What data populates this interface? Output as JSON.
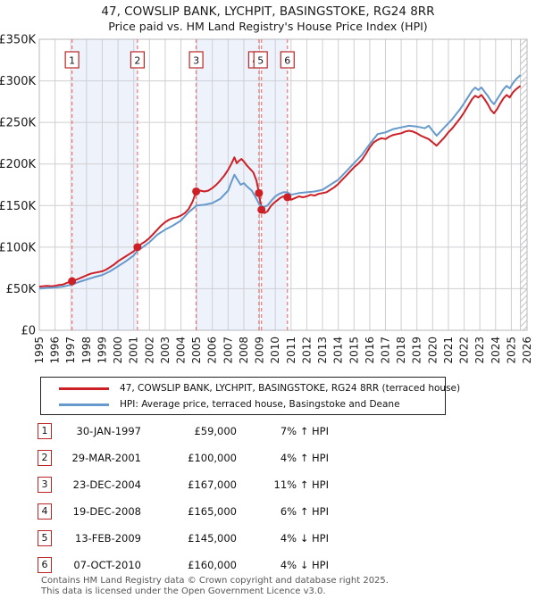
{
  "title": {
    "line1": "47, COWSLIP BANK, LYCHPIT, BASINGSTOKE, RG24 8RR",
    "line2": "Price paid vs. HM Land Registry's House Price Index (HPI)"
  },
  "legend": {
    "items": [
      {
        "label": "47, COWSLIP BANK, LYCHPIT, BASINGSTOKE, RG24 8RR (terraced house)",
        "color": "#cc2026"
      },
      {
        "label": "HPI: Average price, terraced house, Basingstoke and Deane",
        "color": "#6699cc"
      }
    ]
  },
  "chart_data": {
    "type": "line",
    "title": "Price paid vs. HM Land Registry's House Price Index (HPI)",
    "x_range": [
      1995,
      2026
    ],
    "y_range_k": [
      0,
      350
    ],
    "grid": true,
    "legend_position": "below",
    "x_tick_labels": [
      "1995",
      "1996",
      "1997",
      "1998",
      "1999",
      "2000",
      "2001",
      "2002",
      "2003",
      "2004",
      "2005",
      "2006",
      "2007",
      "2008",
      "2009",
      "2010",
      "2011",
      "2012",
      "2013",
      "2014",
      "2015",
      "2016",
      "2017",
      "2018",
      "2019",
      "2020",
      "2021",
      "2022",
      "2023",
      "2024",
      "2025",
      "2026"
    ],
    "y_ticks": [
      {
        "v": 0,
        "label": "£0"
      },
      {
        "v": 50,
        "label": "£50K"
      },
      {
        "v": 100,
        "label": "£100K"
      },
      {
        "v": 150,
        "label": "£150K"
      },
      {
        "v": 200,
        "label": "£200K"
      },
      {
        "v": 250,
        "label": "£250K"
      },
      {
        "v": 300,
        "label": "£300K"
      },
      {
        "v": 350,
        "label": "£350K"
      }
    ],
    "band_color": "#eef2fb",
    "dashed_line_color": "#f07575",
    "grid_color": "#cfcfd4",
    "border_color": "#b8b8bc",
    "hatch_color": "#c4c4c8",
    "hatch_start_year": 2025.58,
    "ownership_bands": [
      [
        1997.08,
        2001.24
      ],
      [
        2004.97,
        2008.96
      ],
      [
        2009.12,
        2010.77
      ]
    ],
    "sale_markers": [
      {
        "n": "1",
        "year": 1997.08,
        "price_k": 59,
        "box_dx": 0
      },
      {
        "n": "2",
        "year": 2001.24,
        "price_k": 100,
        "box_dx": 0
      },
      {
        "n": "3",
        "year": 2004.97,
        "price_k": 167,
        "box_dx": 0
      },
      {
        "n": "4",
        "year": 2008.96,
        "price_k": 165,
        "box_dx": -4
      },
      {
        "n": "5",
        "year": 2009.12,
        "price_k": 145,
        "box_dx": -1
      },
      {
        "n": "6",
        "year": 2010.77,
        "price_k": 160,
        "box_dx": 0
      }
    ],
    "series": [
      {
        "name": "47, COWSLIP BANK, LYCHPIT, BASINGSTOKE, RG24 8RR (terraced house)",
        "color": "#cc2026",
        "points": [
          [
            1995.0,
            52.5
          ],
          [
            1995.25,
            53
          ],
          [
            1995.5,
            53.5
          ],
          [
            1995.75,
            53
          ],
          [
            1996,
            53.5
          ],
          [
            1996.25,
            54.5
          ],
          [
            1996.5,
            55
          ],
          [
            1996.75,
            57
          ],
          [
            1997.08,
            59
          ],
          [
            1997.3,
            60.5
          ],
          [
            1997.5,
            62
          ],
          [
            1997.75,
            64
          ],
          [
            1998,
            66
          ],
          [
            1998.25,
            68
          ],
          [
            1998.5,
            69
          ],
          [
            1998.75,
            70
          ],
          [
            1999,
            71
          ],
          [
            1999.25,
            73
          ],
          [
            1999.5,
            76
          ],
          [
            1999.75,
            79
          ],
          [
            2000,
            83
          ],
          [
            2000.25,
            86
          ],
          [
            2000.5,
            89
          ],
          [
            2000.75,
            92
          ],
          [
            2001,
            95
          ],
          [
            2001.24,
            100
          ],
          [
            2001.5,
            104
          ],
          [
            2001.75,
            107
          ],
          [
            2002,
            111
          ],
          [
            2002.25,
            116
          ],
          [
            2002.5,
            121
          ],
          [
            2002.75,
            126
          ],
          [
            2003,
            130
          ],
          [
            2003.25,
            133
          ],
          [
            2003.5,
            135
          ],
          [
            2003.75,
            136
          ],
          [
            2004,
            138
          ],
          [
            2004.25,
            141
          ],
          [
            2004.5,
            146
          ],
          [
            2004.75,
            155
          ],
          [
            2004.97,
            167
          ],
          [
            2005.2,
            168
          ],
          [
            2005.5,
            167
          ],
          [
            2005.75,
            168
          ],
          [
            2006,
            171
          ],
          [
            2006.25,
            175
          ],
          [
            2006.5,
            180
          ],
          [
            2006.75,
            186
          ],
          [
            2007,
            193
          ],
          [
            2007.2,
            200
          ],
          [
            2007.4,
            208
          ],
          [
            2007.55,
            201
          ],
          [
            2007.7,
            204
          ],
          [
            2007.85,
            206
          ],
          [
            2008,
            203
          ],
          [
            2008.2,
            198
          ],
          [
            2008.4,
            194
          ],
          [
            2008.6,
            190
          ],
          [
            2008.8,
            180
          ],
          [
            2008.96,
            165
          ],
          [
            2009.12,
            145
          ],
          [
            2009.3,
            141
          ],
          [
            2009.5,
            143
          ],
          [
            2009.7,
            149
          ],
          [
            2009.9,
            153
          ],
          [
            2010.1,
            156
          ],
          [
            2010.3,
            159
          ],
          [
            2010.5,
            161
          ],
          [
            2010.77,
            160
          ],
          [
            2011,
            157
          ],
          [
            2011.25,
            159
          ],
          [
            2011.5,
            161
          ],
          [
            2011.75,
            160
          ],
          [
            2012,
            161
          ],
          [
            2012.25,
            163
          ],
          [
            2012.5,
            162
          ],
          [
            2012.75,
            164
          ],
          [
            2013,
            165
          ],
          [
            2013.25,
            166
          ],
          [
            2013.5,
            169
          ],
          [
            2013.75,
            172
          ],
          [
            2014,
            176
          ],
          [
            2014.25,
            181
          ],
          [
            2014.5,
            186
          ],
          [
            2014.75,
            191
          ],
          [
            2015,
            196
          ],
          [
            2015.25,
            200
          ],
          [
            2015.5,
            205
          ],
          [
            2015.75,
            212
          ],
          [
            2016,
            220
          ],
          [
            2016.25,
            226
          ],
          [
            2016.5,
            229
          ],
          [
            2016.75,
            231
          ],
          [
            2017,
            230
          ],
          [
            2017.25,
            233
          ],
          [
            2017.5,
            235
          ],
          [
            2017.75,
            236
          ],
          [
            2018,
            237
          ],
          [
            2018.25,
            239
          ],
          [
            2018.5,
            240
          ],
          [
            2018.75,
            239
          ],
          [
            2019,
            237
          ],
          [
            2019.25,
            234
          ],
          [
            2019.5,
            232
          ],
          [
            2019.75,
            230
          ],
          [
            2020,
            226
          ],
          [
            2020.25,
            222
          ],
          [
            2020.5,
            227
          ],
          [
            2020.75,
            232
          ],
          [
            2021,
            238
          ],
          [
            2021.25,
            243
          ],
          [
            2021.5,
            249
          ],
          [
            2021.75,
            255
          ],
          [
            2022,
            262
          ],
          [
            2022.25,
            270
          ],
          [
            2022.5,
            278
          ],
          [
            2022.7,
            282
          ],
          [
            2022.9,
            280
          ],
          [
            2023.1,
            283
          ],
          [
            2023.3,
            278
          ],
          [
            2023.5,
            272
          ],
          [
            2023.7,
            265
          ],
          [
            2023.9,
            261
          ],
          [
            2024.1,
            266
          ],
          [
            2024.3,
            273
          ],
          [
            2024.5,
            279
          ],
          [
            2024.7,
            283
          ],
          [
            2024.9,
            280
          ],
          [
            2025.1,
            286
          ],
          [
            2025.3,
            290
          ],
          [
            2025.58,
            294
          ]
        ]
      },
      {
        "name": "HPI: Average price, terraced house, Basingstoke and Deane",
        "color": "#6699cc",
        "points": [
          [
            1995,
            50
          ],
          [
            1995.5,
            51
          ],
          [
            1996,
            51.5
          ],
          [
            1996.5,
            52.5
          ],
          [
            1997.08,
            55
          ],
          [
            1997.5,
            58
          ],
          [
            1998,
            61
          ],
          [
            1998.5,
            64
          ],
          [
            1999,
            66.5
          ],
          [
            1999.5,
            71
          ],
          [
            2000,
            77
          ],
          [
            2000.5,
            83
          ],
          [
            2001,
            90
          ],
          [
            2001.24,
            96
          ],
          [
            2001.5,
            99
          ],
          [
            2002,
            106
          ],
          [
            2002.5,
            115
          ],
          [
            2003,
            121
          ],
          [
            2003.5,
            126
          ],
          [
            2004,
            132
          ],
          [
            2004.5,
            142
          ],
          [
            2005,
            150
          ],
          [
            2005.5,
            151
          ],
          [
            2006,
            153
          ],
          [
            2006.5,
            158
          ],
          [
            2007,
            168
          ],
          [
            2007.2,
            178
          ],
          [
            2007.4,
            187
          ],
          [
            2007.6,
            181
          ],
          [
            2007.8,
            175
          ],
          [
            2008,
            177
          ],
          [
            2008.2,
            173
          ],
          [
            2008.5,
            168
          ],
          [
            2008.75,
            160
          ],
          [
            2009,
            151
          ],
          [
            2009.25,
            148
          ],
          [
            2009.5,
            150
          ],
          [
            2009.75,
            156
          ],
          [
            2010,
            161
          ],
          [
            2010.25,
            164
          ],
          [
            2010.5,
            166
          ],
          [
            2010.77,
            166
          ],
          [
            2011,
            163
          ],
          [
            2011.5,
            165
          ],
          [
            2012,
            166
          ],
          [
            2012.5,
            167
          ],
          [
            2013,
            169
          ],
          [
            2013.5,
            175
          ],
          [
            2014,
            181
          ],
          [
            2014.5,
            191
          ],
          [
            2015,
            201
          ],
          [
            2015.5,
            211
          ],
          [
            2016,
            224
          ],
          [
            2016.5,
            236
          ],
          [
            2017,
            238
          ],
          [
            2017.5,
            242
          ],
          [
            2018,
            244
          ],
          [
            2018.5,
            246
          ],
          [
            2019,
            245
          ],
          [
            2019.25,
            244
          ],
          [
            2019.5,
            243
          ],
          [
            2019.75,
            246
          ],
          [
            2020,
            240
          ],
          [
            2020.25,
            234
          ],
          [
            2020.5,
            239
          ],
          [
            2020.75,
            244
          ],
          [
            2021,
            249
          ],
          [
            2021.25,
            254
          ],
          [
            2021.5,
            260
          ],
          [
            2021.75,
            266
          ],
          [
            2022,
            273
          ],
          [
            2022.5,
            288
          ],
          [
            2022.7,
            292
          ],
          [
            2022.9,
            289
          ],
          [
            2023.1,
            292
          ],
          [
            2023.3,
            287
          ],
          [
            2023.5,
            282
          ],
          [
            2023.7,
            276
          ],
          [
            2023.9,
            272
          ],
          [
            2024.1,
            278
          ],
          [
            2024.3,
            284
          ],
          [
            2024.5,
            290
          ],
          [
            2024.7,
            294
          ],
          [
            2024.9,
            291
          ],
          [
            2025.1,
            297
          ],
          [
            2025.3,
            302
          ],
          [
            2025.58,
            307
          ]
        ]
      }
    ]
  },
  "table": {
    "rows": [
      {
        "num": "1",
        "date": "30-JAN-1997",
        "price": "£59,000",
        "vs_hpi": "7% ↑ HPI"
      },
      {
        "num": "2",
        "date": "29-MAR-2001",
        "price": "£100,000",
        "vs_hpi": "4% ↑ HPI"
      },
      {
        "num": "3",
        "date": "23-DEC-2004",
        "price": "£167,000",
        "vs_hpi": "11% ↑ HPI"
      },
      {
        "num": "4",
        "date": "19-DEC-2008",
        "price": "£165,000",
        "vs_hpi": "6% ↑ HPI"
      },
      {
        "num": "5",
        "date": "13-FEB-2009",
        "price": "£145,000",
        "vs_hpi": "4% ↓ HPI"
      },
      {
        "num": "6",
        "date": "07-OCT-2010",
        "price": "£160,000",
        "vs_hpi": "4% ↓ HPI"
      }
    ]
  },
  "footer": {
    "line1": "Contains HM Land Registry data © Crown copyright and database right 2025.",
    "line2": "This data is licensed under the Open Government Licence v3.0."
  }
}
